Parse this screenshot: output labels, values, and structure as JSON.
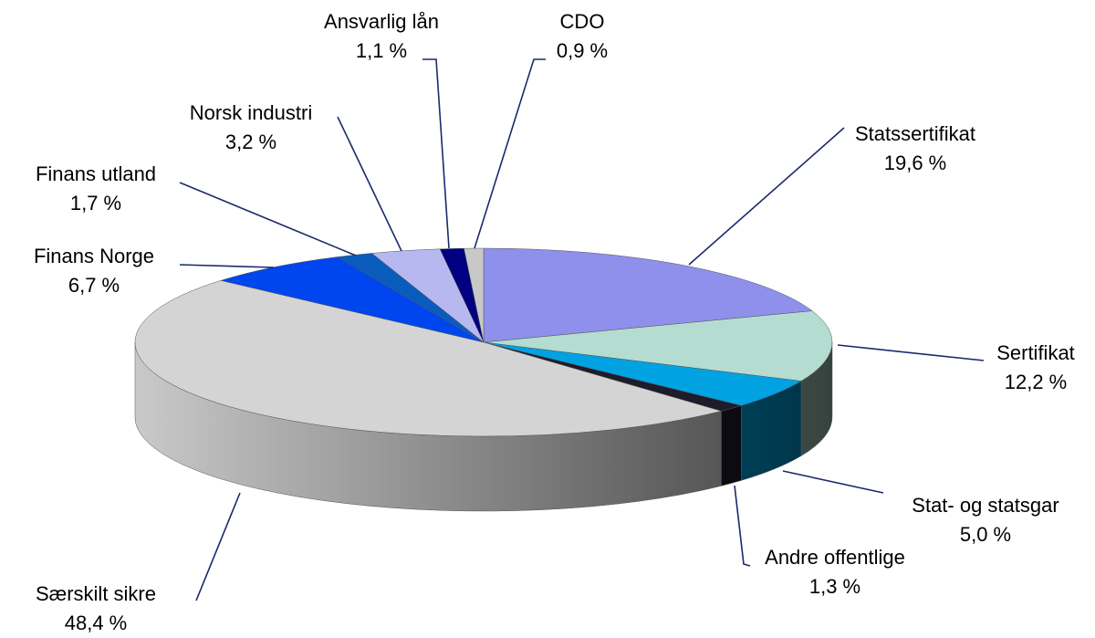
{
  "chart_data": {
    "type": "pie3d",
    "categories": [
      "Statssertifikat",
      "Sertifikat",
      "Stat- og statsgar",
      "Andre offentlige",
      "Særskilt sikre",
      "Finans Norge",
      "Finans utland",
      "Norsk industri",
      "Ansvarlig lån",
      "CDO"
    ],
    "values": [
      19.6,
      12.2,
      5.0,
      1.3,
      48.4,
      6.7,
      1.7,
      3.2,
      1.1,
      0.9
    ],
    "value_labels": [
      "19,6 %",
      "12,2 %",
      "5,0 %",
      "1,3 %",
      "48,4 %",
      "6,7 %",
      "1,7 %",
      "3,2 %",
      "1,1 %",
      "0,9 %"
    ],
    "colors": [
      "#8f8fec",
      "#b4dcd0",
      "#00a2e2",
      "#1c1c2c",
      "#d4d4d4",
      "#0046ee",
      "#0a5cbc",
      "#b8b8f0",
      "#000080",
      "#c8c8c8"
    ]
  }
}
